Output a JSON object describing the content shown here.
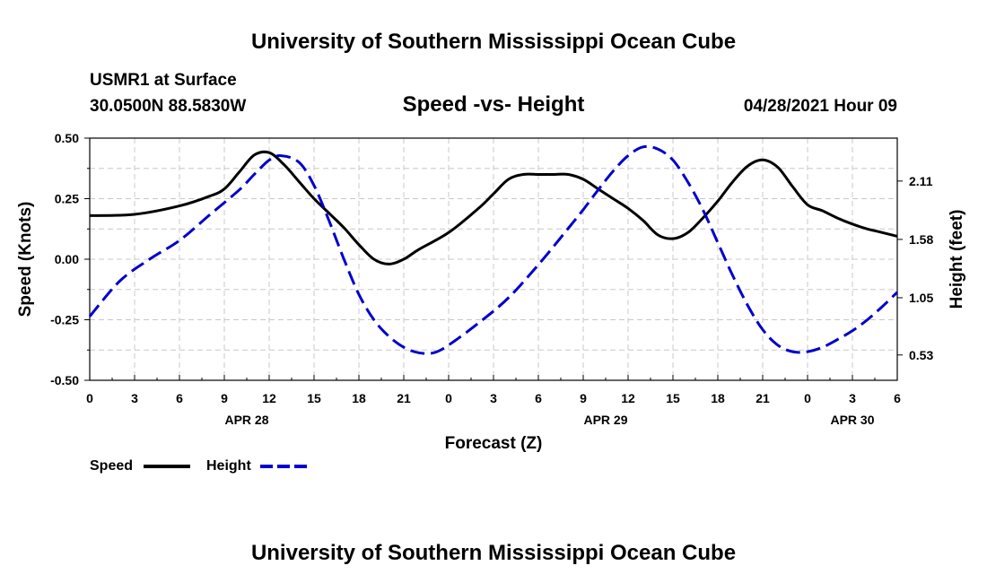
{
  "header": {
    "title": "University of Southern Mississippi Ocean Cube",
    "station": "USMR1 at Surface",
    "coords": "30.0500N  88.5830W",
    "chart_title": "Speed -vs- Height",
    "datetime": "04/28/2021 Hour 09"
  },
  "footer": {
    "title": "University of Southern Mississippi Ocean Cube"
  },
  "legend": {
    "speed_label": "Speed",
    "height_label": "Height"
  },
  "colors": {
    "speed": "#000000",
    "height": "#0000cc",
    "grid": "#c8c8c8"
  },
  "chart_data": {
    "type": "line",
    "xlabel": "Forecast (Z)",
    "ylabel_left": "Speed (Knots)",
    "ylabel_right": "Height (feet)",
    "x_range_hours": [
      0,
      54
    ],
    "x_ticks": [
      {
        "h": 0,
        "label": "0"
      },
      {
        "h": 3,
        "label": "3"
      },
      {
        "h": 6,
        "label": "6"
      },
      {
        "h": 9,
        "label": "9"
      },
      {
        "h": 12,
        "label": "12"
      },
      {
        "h": 15,
        "label": "15"
      },
      {
        "h": 18,
        "label": "18"
      },
      {
        "h": 21,
        "label": "21"
      },
      {
        "h": 24,
        "label": "0"
      },
      {
        "h": 27,
        "label": "3"
      },
      {
        "h": 30,
        "label": "6"
      },
      {
        "h": 33,
        "label": "9"
      },
      {
        "h": 36,
        "label": "12"
      },
      {
        "h": 39,
        "label": "15"
      },
      {
        "h": 42,
        "label": "18"
      },
      {
        "h": 45,
        "label": "21"
      },
      {
        "h": 48,
        "label": "0"
      },
      {
        "h": 51,
        "label": "3"
      },
      {
        "h": 54,
        "label": "6"
      }
    ],
    "date_labels": [
      {
        "h": 10.5,
        "label": "APR 28"
      },
      {
        "h": 34.5,
        "label": "APR 29"
      },
      {
        "h": 51,
        "label": "APR 30"
      }
    ],
    "y_left": {
      "range": [
        -0.5,
        0.5
      ],
      "ticks": [
        "0.50",
        "0.25",
        "0.00",
        "-0.25",
        "-0.50"
      ],
      "tick_values": [
        0.5,
        0.25,
        0,
        -0.25,
        -0.5
      ]
    },
    "y_right": {
      "range": [
        0.3,
        2.5
      ],
      "ticks": [
        "2.11",
        "1.58",
        "1.05",
        "0.53"
      ],
      "tick_values": [
        2.11,
        1.58,
        1.05,
        0.53
      ]
    },
    "series": [
      {
        "name": "Speed",
        "axis": "left",
        "style": "solid",
        "points": [
          [
            0,
            0.18
          ],
          [
            3,
            0.185
          ],
          [
            6,
            0.22
          ],
          [
            8,
            0.26
          ],
          [
            9,
            0.29
          ],
          [
            10,
            0.36
          ],
          [
            11,
            0.43
          ],
          [
            12,
            0.44
          ],
          [
            13,
            0.39
          ],
          [
            14,
            0.32
          ],
          [
            15,
            0.25
          ],
          [
            16,
            0.19
          ],
          [
            17,
            0.13
          ],
          [
            18,
            0.06
          ],
          [
            19,
            0.0
          ],
          [
            20,
            -0.02
          ],
          [
            21,
            0.0
          ],
          [
            22,
            0.04
          ],
          [
            24,
            0.11
          ],
          [
            26,
            0.21
          ],
          [
            27,
            0.27
          ],
          [
            28,
            0.33
          ],
          [
            29,
            0.35
          ],
          [
            30,
            0.35
          ],
          [
            31,
            0.35
          ],
          [
            32,
            0.35
          ],
          [
            33,
            0.33
          ],
          [
            34,
            0.29
          ],
          [
            35,
            0.25
          ],
          [
            36,
            0.21
          ],
          [
            37,
            0.16
          ],
          [
            38,
            0.1
          ],
          [
            39,
            0.085
          ],
          [
            40,
            0.11
          ],
          [
            41,
            0.17
          ],
          [
            42,
            0.24
          ],
          [
            43,
            0.32
          ],
          [
            44,
            0.385
          ],
          [
            45,
            0.41
          ],
          [
            46,
            0.38
          ],
          [
            47,
            0.3
          ],
          [
            48,
            0.225
          ],
          [
            49,
            0.2
          ],
          [
            50,
            0.17
          ],
          [
            51,
            0.145
          ],
          [
            52,
            0.125
          ],
          [
            53,
            0.11
          ],
          [
            54,
            0.095
          ]
        ]
      },
      {
        "name": "Height",
        "axis": "right",
        "style": "dashed",
        "points": [
          [
            0,
            0.88
          ],
          [
            2,
            1.2
          ],
          [
            4,
            1.4
          ],
          [
            6,
            1.57
          ],
          [
            8,
            1.8
          ],
          [
            10,
            2.03
          ],
          [
            11,
            2.17
          ],
          [
            12,
            2.3
          ],
          [
            12.8,
            2.34
          ],
          [
            14,
            2.28
          ],
          [
            15,
            2.07
          ],
          [
            16,
            1.75
          ],
          [
            17,
            1.4
          ],
          [
            18,
            1.08
          ],
          [
            19,
            0.85
          ],
          [
            20,
            0.7
          ],
          [
            21,
            0.6
          ],
          [
            22,
            0.55
          ],
          [
            23,
            0.55
          ],
          [
            24,
            0.62
          ],
          [
            26,
            0.82
          ],
          [
            28,
            1.05
          ],
          [
            30,
            1.35
          ],
          [
            32,
            1.68
          ],
          [
            33,
            1.85
          ],
          [
            34,
            2.03
          ],
          [
            35,
            2.2
          ],
          [
            36,
            2.34
          ],
          [
            37,
            2.42
          ],
          [
            38,
            2.4
          ],
          [
            39,
            2.3
          ],
          [
            40,
            2.1
          ],
          [
            41,
            1.85
          ],
          [
            42,
            1.55
          ],
          [
            43,
            1.25
          ],
          [
            44,
            0.98
          ],
          [
            45,
            0.76
          ],
          [
            46,
            0.62
          ],
          [
            47,
            0.56
          ],
          [
            48,
            0.56
          ],
          [
            49,
            0.6
          ],
          [
            50,
            0.67
          ],
          [
            51,
            0.75
          ],
          [
            52,
            0.85
          ],
          [
            53,
            0.97
          ],
          [
            54,
            1.1
          ]
        ]
      }
    ]
  }
}
